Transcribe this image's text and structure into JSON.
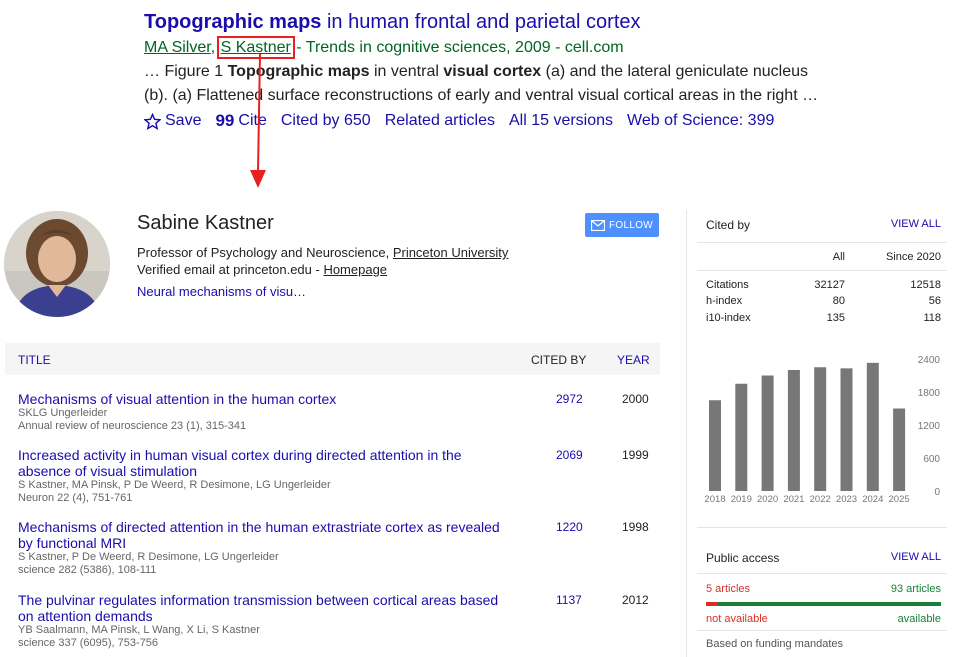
{
  "result": {
    "title_hl": "Topographic maps",
    "title_rest": " in human frontal and parietal cortex",
    "author1": "MA Silver",
    "author_sep": ", ",
    "author2": "S Kastner",
    "source": " - Trends in cognitive sciences, 2009 - cell.com",
    "snippet1": {
      "a": "… Figure 1 ",
      "b": "Topographic maps",
      "c": " in ventral ",
      "d": "visual cortex",
      "e": " (a) and the lateral geniculate nucleus"
    },
    "snippet2": "(b). (a) Flattened surface reconstructions of early and ventral visual cortical areas in the right …",
    "actions": {
      "save": "Save",
      "cite": "Cite",
      "cited_by": "Cited by 650",
      "related": "Related articles",
      "versions": "All 15 versions",
      "wos": "Web of Science: 399"
    }
  },
  "profile": {
    "name": "Sabine Kastner",
    "position": "Professor of Psychology and Neuroscience, ",
    "university": "Princeton University",
    "email": "Verified email at princeton.edu - ",
    "homepage": "Homepage",
    "interest": "Neural mechanisms of visu…",
    "follow": "FOLLOW"
  },
  "table": {
    "h_title": "TITLE",
    "h_cited": "CITED BY",
    "h_year": "YEAR",
    "rows": [
      {
        "title": "Mechanisms of visual attention in the human cortex",
        "authors": "SKLG Ungerleider",
        "venue": "Annual review of neuroscience 23 (1), 315-341",
        "cited": "2972",
        "year": "2000"
      },
      {
        "title": "Increased activity in human visual cortex during directed attention in the absence of visual stimulation",
        "authors": "S Kastner, MA Pinsk, P De Weerd, R Desimone, LG Ungerleider",
        "venue": "Neuron 22 (4), 751-761",
        "cited": "2069",
        "year": "1999"
      },
      {
        "title": "Mechanisms of directed attention in the human extrastriate cortex as revealed by functional MRI",
        "authors": "S Kastner, P De Weerd, R Desimone, LG Ungerleider",
        "venue": "science 282 (5386), 108-111",
        "cited": "1220",
        "year": "1998"
      },
      {
        "title": "The pulvinar regulates information transmission between cortical areas based on attention demands",
        "authors": "YB Saalmann, MA Pinsk, L Wang, X Li, S Kastner",
        "venue": "science 337 (6095), 753-756",
        "cited": "1137",
        "year": "2012"
      }
    ]
  },
  "cited_by": {
    "label": "Cited by",
    "view_all": "VIEW ALL",
    "col_all": "All",
    "col_since": "Since 2020",
    "stats": [
      {
        "label": "Citations",
        "all": "32127",
        "since": "12518"
      },
      {
        "label": "h-index",
        "all": "80",
        "since": "56"
      },
      {
        "label": "i10-index",
        "all": "135",
        "since": "118"
      }
    ]
  },
  "chart_data": {
    "type": "bar",
    "categories": [
      "2018",
      "2019",
      "2020",
      "2021",
      "2022",
      "2023",
      "2024",
      "2025"
    ],
    "values": [
      1650,
      1950,
      2100,
      2200,
      2250,
      2230,
      2330,
      1500
    ],
    "yticks": [
      "2400",
      "1800",
      "1200",
      "600",
      "0"
    ],
    "ylim": [
      0,
      2400
    ],
    "bar_color": "#777777"
  },
  "public_access": {
    "label": "Public access",
    "view_all": "VIEW ALL",
    "not_avail_count": "5 articles",
    "avail_count": "93 articles",
    "not_avail": "not available",
    "avail": "available",
    "available_fraction": 0.949,
    "funding": "Based on funding mandates"
  }
}
